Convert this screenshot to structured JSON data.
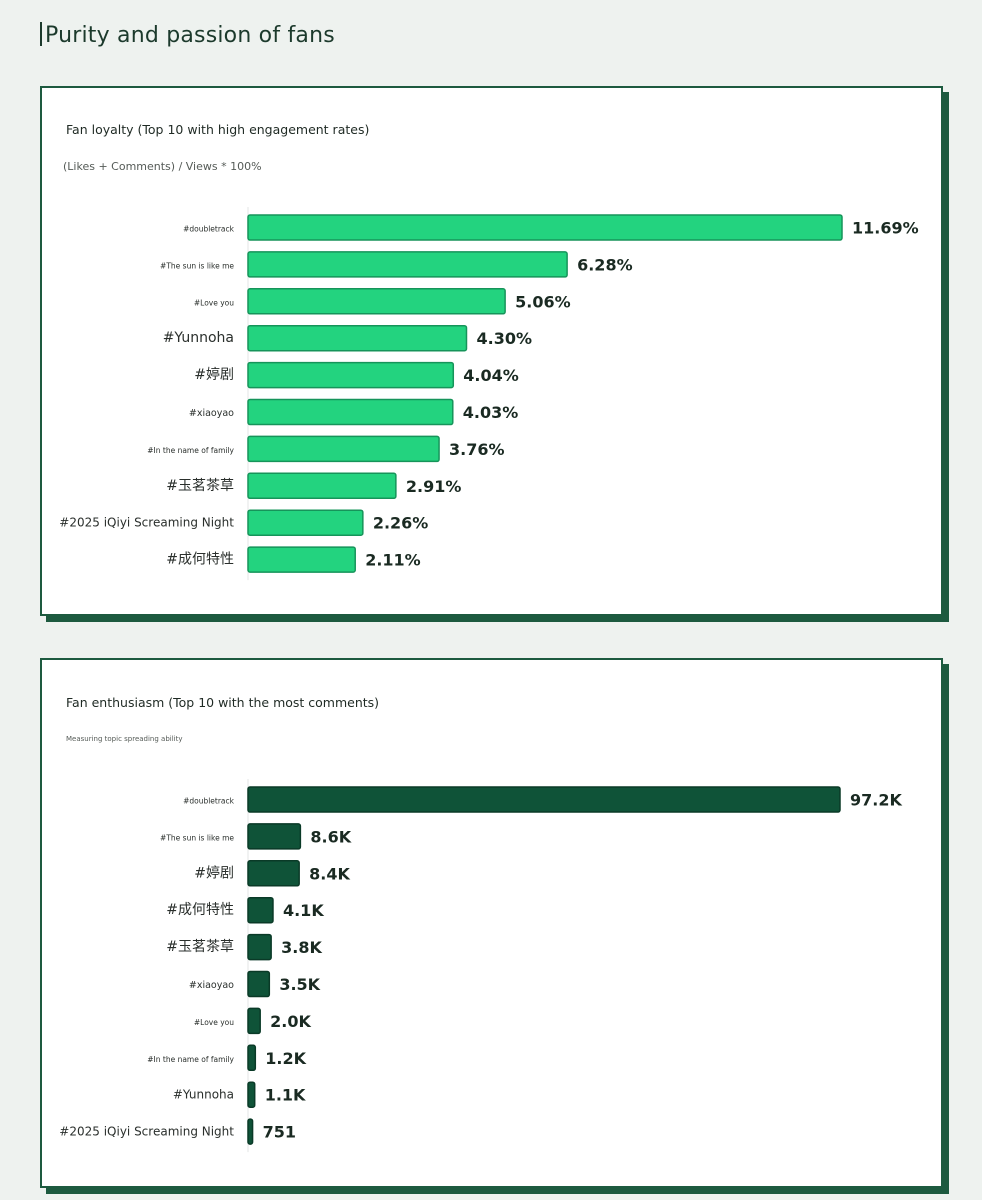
{
  "page": {
    "title": "Purity and passion of fans"
  },
  "colors": {
    "loyalty_bar": "#23d37f",
    "loyalty_border": "#16945a",
    "enthusiasm_bar": "#0f5338",
    "card_border": "#1d5a3f"
  },
  "chart_data": [
    {
      "type": "bar",
      "orientation": "horizontal",
      "title": "Fan loyalty (Top 10 with high engagement rates)",
      "subtitle": "(Likes + Comments) / Views * 100%",
      "categories": [
        "#doubletrack",
        "#The sun is like me",
        "#Love you",
        "#Yunnoha",
        "#婷剧",
        "#xiaoyao",
        "#In the name of family",
        "#玉茗茶草",
        "#2025 iQiyi Screaming Night",
        "#成何特性"
      ],
      "values": [
        11.69,
        6.28,
        5.06,
        4.3,
        4.04,
        4.03,
        3.76,
        2.91,
        2.26,
        2.11
      ],
      "value_labels": [
        "11.69%",
        "6.28%",
        "5.06%",
        "4.30%",
        "4.04%",
        "4.03%",
        "3.76%",
        "2.91%",
        "2.26%",
        "2.11%"
      ],
      "label_sizes": [
        "tiny",
        "tiny",
        "tiny",
        "large",
        "large",
        "small",
        "tiny",
        "large",
        "medium",
        "large"
      ],
      "xlim": [
        0,
        11.69
      ]
    },
    {
      "type": "bar",
      "orientation": "horizontal",
      "title": "Fan enthusiasm (Top 10 with the most comments)",
      "subtitle": "Measuring topic spreading ability",
      "categories": [
        "#doubletrack",
        "#The sun is like me",
        "#婷剧",
        "#成何特性",
        "#玉茗茶草",
        "#xiaoyao",
        "#Love you",
        "#In the name of family",
        "#Yunnoha",
        "#2025 iQiyi Screaming Night"
      ],
      "values": [
        97200,
        8600,
        8400,
        4100,
        3800,
        3500,
        2000,
        1200,
        1100,
        751
      ],
      "value_labels": [
        "97.2K",
        "8.6K",
        "8.4K",
        "4.1K",
        "3.8K",
        "3.5K",
        "2.0K",
        "1.2K",
        "1.1K",
        "751"
      ],
      "label_sizes": [
        "tiny",
        "tiny",
        "large",
        "large",
        "large",
        "small",
        "tiny",
        "tiny",
        "medium",
        "medium"
      ],
      "xlim": [
        0,
        97200
      ]
    }
  ]
}
